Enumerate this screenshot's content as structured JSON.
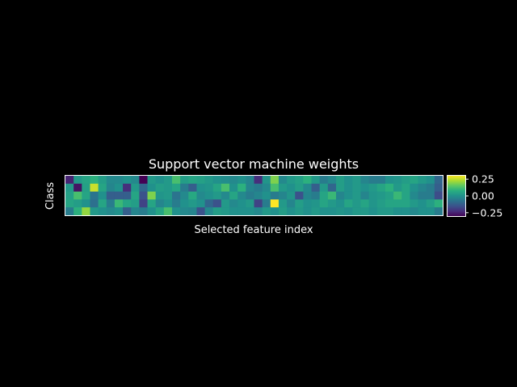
{
  "figure": {
    "background": "#000000",
    "foreground": "#ffffff"
  },
  "chart_data": {
    "type": "heatmap",
    "title": "Support vector machine weights",
    "xlabel": "Selected feature index",
    "ylabel": "Class",
    "xticks": "none",
    "yticks": "none",
    "grid": false,
    "colormap": "viridis",
    "colorbar": {
      "position": "right",
      "range": [
        -0.3,
        0.3
      ],
      "ticks": [
        0.25,
        0.0,
        -0.25
      ],
      "tick_labels": [
        "0.25",
        "0.00",
        "−0.25"
      ]
    },
    "n_rows": 5,
    "n_cols": 46,
    "values": [
      [
        -0.24,
        0.02,
        0.05,
        0.08,
        0.03,
        -0.02,
        -0.02,
        0.0,
        -0.02,
        -0.3,
        0.02,
        0.0,
        0.02,
        0.12,
        0.03,
        0.05,
        0.04,
        0.02,
        0.0,
        -0.01,
        -0.02,
        0.0,
        -0.03,
        -0.22,
        0.01,
        0.18,
        -0.02,
        0.02,
        0.04,
        0.08,
        0.02,
        -0.05,
        -0.02,
        0.03,
        0.0,
        0.02,
        -0.03,
        -0.05,
        -0.05,
        0.0,
        0.01,
        0.03,
        0.05,
        0.02,
        0.0,
        -0.1
      ],
      [
        0.02,
        -0.27,
        0.04,
        0.25,
        0.05,
        -0.03,
        0.0,
        -0.22,
        0.02,
        -0.1,
        0.0,
        0.03,
        0.02,
        0.05,
        -0.05,
        -0.12,
        0.0,
        0.01,
        0.05,
        0.12,
        0.0,
        0.08,
        -0.03,
        -0.05,
        -0.02,
        0.12,
        0.02,
        0.0,
        0.03,
        -0.02,
        -0.12,
        0.02,
        -0.1,
        0.03,
        0.0,
        0.02,
        0.0,
        0.02,
        0.05,
        0.08,
        0.02,
        0.05,
        0.0,
        -0.03,
        -0.05,
        -0.12
      ],
      [
        0.04,
        0.12,
        0.05,
        -0.07,
        0.0,
        -0.12,
        -0.12,
        -0.12,
        0.05,
        -0.15,
        0.18,
        0.01,
        0.02,
        -0.07,
        -0.02,
        0.06,
        -0.02,
        0.0,
        0.02,
        -0.02,
        0.05,
        -0.02,
        -0.05,
        -0.03,
        0.0,
        -0.05,
        -0.03,
        0.01,
        -0.15,
        -0.03,
        -0.05,
        0.05,
        0.1,
        -0.03,
        0.0,
        0.02,
        -0.03,
        0.01,
        0.02,
        0.04,
        0.1,
        0.05,
        -0.02,
        -0.05,
        -0.05,
        -0.16
      ],
      [
        0.05,
        0.03,
        0.0,
        -0.08,
        0.05,
        -0.05,
        0.1,
        0.05,
        0.03,
        -0.18,
        0.05,
        -0.03,
        0.0,
        -0.05,
        0.0,
        0.02,
        0.0,
        -0.1,
        -0.15,
        0.02,
        -0.02,
        0.0,
        0.02,
        -0.18,
        -0.05,
        0.36,
        0.02,
        -0.03,
        0.03,
        0.0,
        0.01,
        0.05,
        0.02,
        0.0,
        0.05,
        0.02,
        0.05,
        0.01,
        0.03,
        0.05,
        0.05,
        0.05,
        0.02,
        0.0,
        0.03,
        0.08
      ],
      [
        -0.05,
        0.08,
        0.2,
        0.02,
        0.0,
        -0.02,
        0.0,
        -0.12,
        -0.03,
        -0.05,
        0.0,
        0.05,
        0.12,
        0.0,
        -0.02,
        -0.03,
        -0.15,
        -0.02,
        0.03,
        0.02,
        0.0,
        0.0,
        0.0,
        -0.02,
        0.02,
        0.0,
        0.03,
        0.0,
        0.02,
        0.0,
        0.02,
        0.0,
        0.0,
        0.01,
        0.0,
        0.02,
        0.02,
        0.0,
        0.02,
        0.02,
        0.0,
        0.0,
        -0.02,
        0.0,
        0.0,
        -0.05
      ]
    ]
  }
}
